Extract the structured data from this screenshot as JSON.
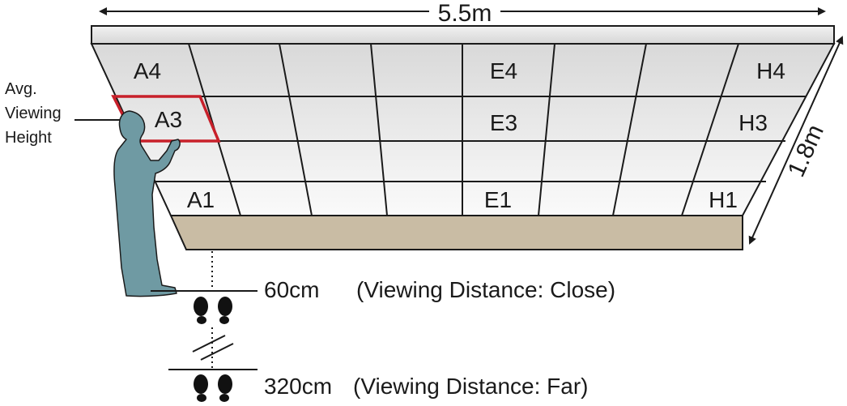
{
  "width_label": "5.5m",
  "height_label": "1.8m",
  "viewing_height_label": [
    "Avg.",
    "Viewing",
    "Height"
  ],
  "tiles": {
    "A4": "A4",
    "E4": "E4",
    "H4": "H4",
    "A3": "A3",
    "E3": "E3",
    "H3": "H3",
    "A1": "A1",
    "E1": "E1",
    "H1": "H1"
  },
  "close": {
    "distance": "60cm",
    "description": "(Viewing Distance: Close)"
  },
  "far": {
    "distance": "320cm",
    "description": "(Viewing Distance: Far)"
  },
  "colors": {
    "frame": "#e6e6e6",
    "screen_top": "#dcdcdc",
    "screen_bottom": "#f7f7f7",
    "base": "#c9bca4",
    "person": "#6f9aa3",
    "highlight": "#c8202a",
    "ink": "#1a1a1a"
  }
}
